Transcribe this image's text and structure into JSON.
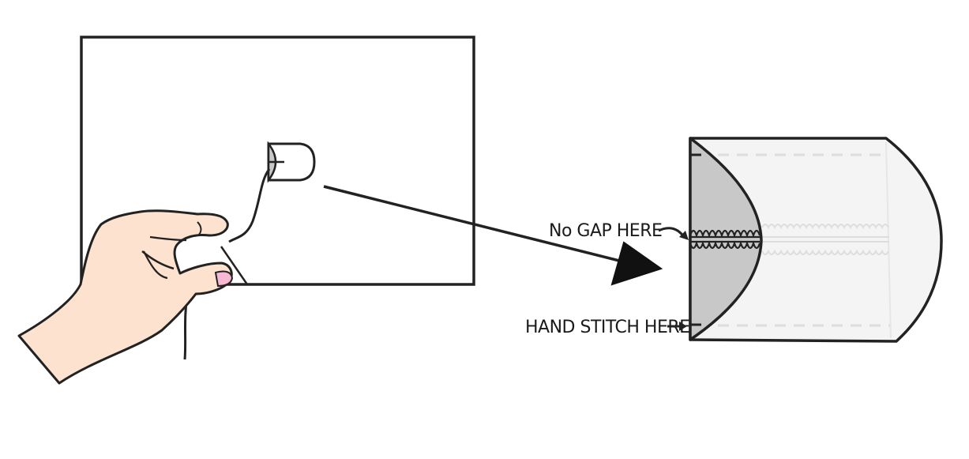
{
  "annotations": {
    "no_gap": "No GAP HERE",
    "hand_stitch": "HAND STITCH HERE"
  },
  "colors": {
    "outline": "#222222",
    "skin": "#fde3cf",
    "nail": "#f7b8d4",
    "fold_shade": "#c8c8c8",
    "fabric_light": "#f4f4f4",
    "stitch_line": "#dddddd"
  },
  "icons": {
    "hand": "hand-holding-needle-icon",
    "pointer_arrow": "arrow-right-icon"
  }
}
